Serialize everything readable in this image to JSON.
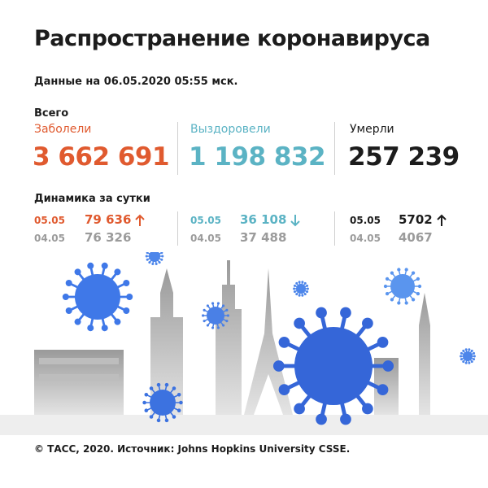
{
  "header": {
    "title": "Распространение коронавируса",
    "subtitle": "Данные на 06.05.2020 05:55 мск.",
    "total_label": "Всего",
    "dynamics_label": "Динамика за сутки"
  },
  "columns": [
    {
      "label": "Заболели",
      "total": "3 662 691",
      "latest": {
        "date": "05.05",
        "value": "79 636"
      },
      "previous": {
        "date": "04.05",
        "value": "76 326"
      }
    },
    {
      "label": "Выздоровели",
      "total": "1 198 832",
      "latest": {
        "date": "05.05",
        "value": "36 108"
      },
      "previous": {
        "date": "04.05",
        "value": "37 488"
      }
    },
    {
      "label": "Умерли",
      "total": "257 239",
      "latest": {
        "date": "05.05",
        "value": "5702"
      },
      "previous": {
        "date": "04.05",
        "value": "4067"
      }
    }
  ],
  "footer": "© ТАСС, 2020. Источник: Johns Hopkins University CSSE."
}
